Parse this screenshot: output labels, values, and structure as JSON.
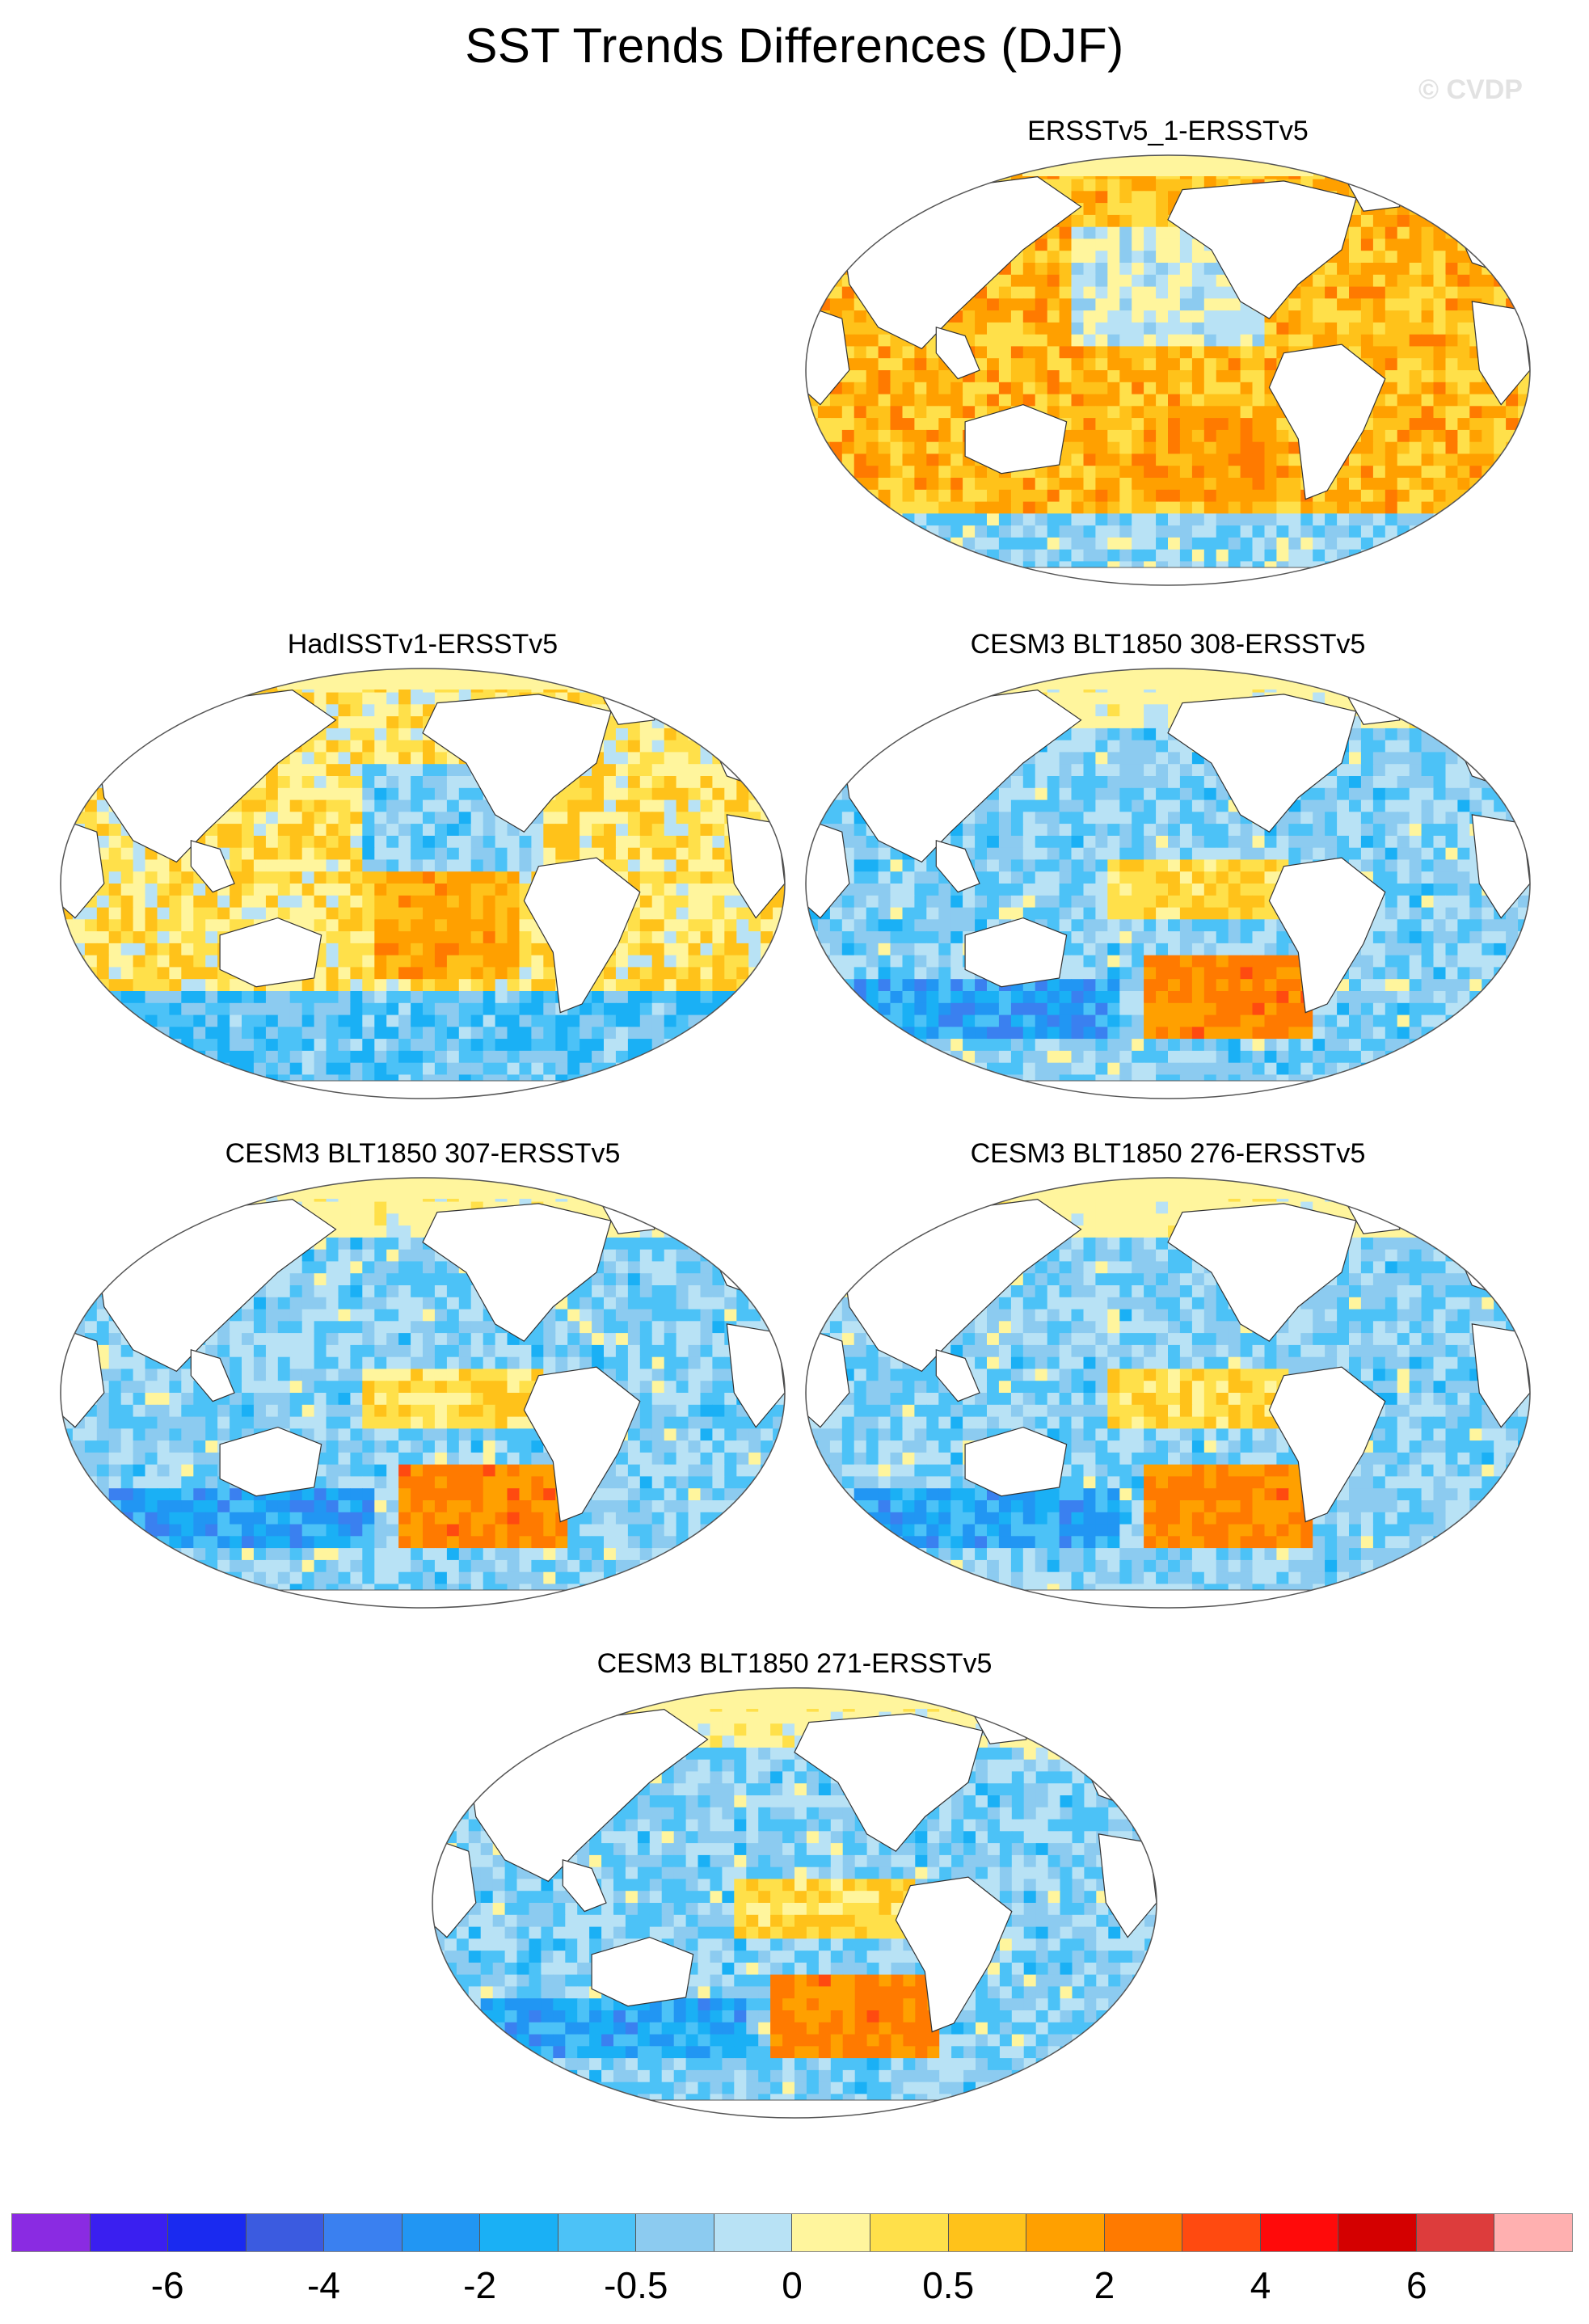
{
  "title": "SST Trends Differences (DJF)",
  "watermark": "© CVDP",
  "panels": [
    {
      "id": "p1",
      "label": "ERSSTv5_1-ERSSTv5",
      "pattern": "warm",
      "seed": 3
    },
    {
      "id": "p2",
      "label": "HadISSTv1-ERSSTv5",
      "pattern": "mixed-warm",
      "seed": 7
    },
    {
      "id": "p3",
      "label": "CESM3 BLT1850 308-ERSSTv5",
      "pattern": "cool-south-warm",
      "seed": 11
    },
    {
      "id": "p4",
      "label": "CESM3 BLT1850 307-ERSSTv5",
      "pattern": "cool-south-warm",
      "seed": 17
    },
    {
      "id": "p5",
      "label": "CESM3 BLT1850 276-ERSSTv5",
      "pattern": "cool-south-warm",
      "seed": 23
    },
    {
      "id": "p6",
      "label": "CESM3 BLT1850 271-ERSSTv5",
      "pattern": "cool-south-warm",
      "seed": 29
    }
  ],
  "colorbar": {
    "colors": [
      "#8a2be2",
      "#3a1ff0",
      "#1a2af0",
      "#3b5be0",
      "#3a80f0",
      "#2196f3",
      "#1ab0f5",
      "#4cc2f7",
      "#8ccbf0",
      "#b8e2f5",
      "#fff59d",
      "#ffe04a",
      "#ffc21a",
      "#ffa000",
      "#ff7a00",
      "#ff4a10",
      "#ff0a0a",
      "#d40000",
      "#dd3c3c",
      "#ffb0b0"
    ],
    "labels": [
      "-6",
      "-4",
      "-2",
      "-0.5",
      "0",
      "0.5",
      "2",
      "4",
      "6"
    ]
  }
}
